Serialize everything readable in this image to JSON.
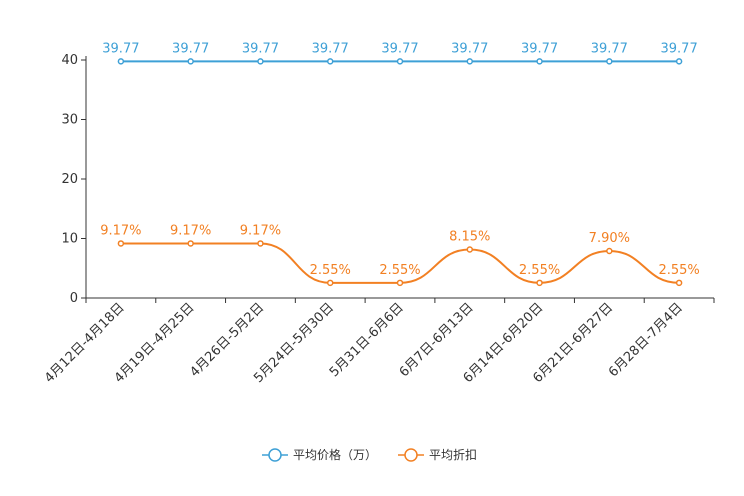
{
  "chart_data": {
    "type": "line",
    "title": "",
    "xlabel": "",
    "ylabel": "",
    "ylim": [
      0,
      40
    ],
    "yticks": [
      0,
      10,
      20,
      30,
      40
    ],
    "grid": false,
    "legend_position": "bottom-center",
    "categories": [
      "4月12日-4月18日",
      "4月19日-4月25日",
      "4月26日-5月2日",
      "5月24日-5月30日",
      "5月31日-6月6日",
      "6月7日-6月13日",
      "6月14日-6月20日",
      "6月21日-6月27日",
      "6月28日-7月4日"
    ],
    "series": [
      {
        "name": "平均价格（万）",
        "values": [
          39.77,
          39.77,
          39.77,
          39.77,
          39.77,
          39.77,
          39.77,
          39.77,
          39.77
        ],
        "labels": [
          "39.77",
          "39.77",
          "39.77",
          "39.77",
          "39.77",
          "39.77",
          "39.77",
          "39.77",
          "39.77"
        ],
        "color": "#3ea0d6",
        "smooth": false
      },
      {
        "name": "平均折扣",
        "values": [
          9.17,
          9.17,
          9.17,
          2.55,
          2.55,
          8.15,
          2.55,
          7.9,
          2.55
        ],
        "labels": [
          "9.17%",
          "9.17%",
          "9.17%",
          "2.55%",
          "2.55%",
          "8.15%",
          "2.55%",
          "7.90%",
          "2.55%"
        ],
        "color": "#f28023",
        "smooth": true
      }
    ]
  }
}
